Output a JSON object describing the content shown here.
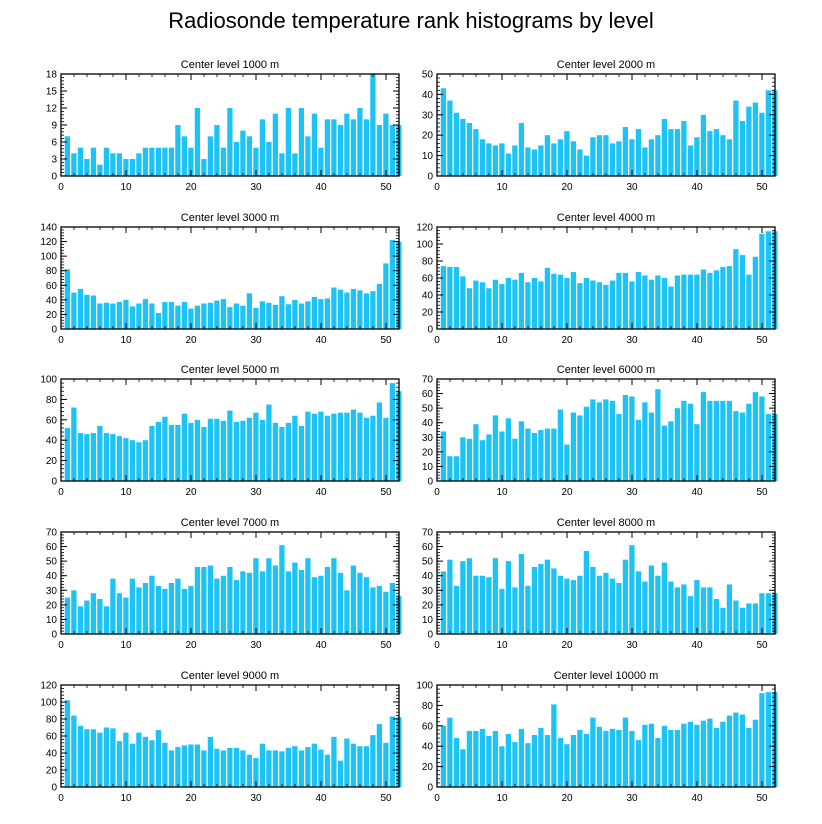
{
  "title": "Radiosonde temperature rank histograms by level",
  "colors": {
    "bar": "#1ec3f5",
    "axis": "#000000",
    "background": "#ffffff"
  },
  "chart_data": [
    {
      "type": "bar",
      "title": "Center level 1000 m",
      "xlim": [
        0,
        52
      ],
      "ylim": [
        0,
        18
      ],
      "xticks": [
        0,
        10,
        20,
        30,
        40,
        50
      ],
      "yticks": [
        0,
        3,
        6,
        9,
        12,
        15,
        18
      ],
      "x": [
        1,
        2,
        3,
        4,
        5,
        6,
        7,
        8,
        9,
        10,
        11,
        12,
        13,
        14,
        15,
        16,
        17,
        18,
        19,
        20,
        21,
        22,
        23,
        24,
        25,
        26,
        27,
        28,
        29,
        30,
        31,
        32,
        33,
        34,
        35,
        36,
        37,
        38,
        39,
        40,
        41,
        42,
        43,
        44,
        45,
        46,
        47,
        48,
        49,
        50,
        51,
        52
      ],
      "values": [
        7,
        4,
        5,
        3,
        5,
        2,
        5,
        4,
        4,
        3,
        3,
        4,
        5,
        5,
        5,
        5,
        5,
        9,
        7,
        5,
        12,
        3,
        7,
        9,
        5,
        12,
        6,
        8,
        7,
        5,
        10,
        6,
        11,
        4,
        12,
        4,
        12,
        7,
        11,
        5,
        10,
        10,
        9,
        11,
        10,
        12,
        10,
        18,
        9,
        11,
        9,
        9
      ]
    },
    {
      "type": "bar",
      "title": "Center level 2000 m",
      "xlim": [
        0,
        52
      ],
      "ylim": [
        0,
        50
      ],
      "xticks": [
        0,
        10,
        20,
        30,
        40,
        50
      ],
      "yticks": [
        0,
        10,
        20,
        30,
        40,
        50
      ],
      "x": [
        1,
        2,
        3,
        4,
        5,
        6,
        7,
        8,
        9,
        10,
        11,
        12,
        13,
        14,
        15,
        16,
        17,
        18,
        19,
        20,
        21,
        22,
        23,
        24,
        25,
        26,
        27,
        28,
        29,
        30,
        31,
        32,
        33,
        34,
        35,
        36,
        37,
        38,
        39,
        40,
        41,
        42,
        43,
        44,
        45,
        46,
        47,
        48,
        49,
        50,
        51,
        52
      ],
      "values": [
        43,
        37,
        31,
        28,
        26,
        23,
        18,
        16,
        15,
        16,
        11,
        15,
        26,
        14,
        13,
        15,
        20,
        16,
        18,
        22,
        17,
        13,
        10,
        19,
        20,
        20,
        16,
        17,
        24,
        18,
        23,
        14,
        18,
        20,
        28,
        23,
        23,
        27,
        15,
        19,
        30,
        22,
        23,
        20,
        18,
        37,
        27,
        34,
        36,
        31,
        42,
        42
      ]
    },
    {
      "type": "bar",
      "title": "Center level 3000 m",
      "xlim": [
        0,
        52
      ],
      "ylim": [
        0,
        140
      ],
      "xticks": [
        0,
        10,
        20,
        30,
        40,
        50
      ],
      "yticks": [
        0,
        20,
        40,
        60,
        80,
        100,
        120,
        140
      ],
      "x": [
        1,
        2,
        3,
        4,
        5,
        6,
        7,
        8,
        9,
        10,
        11,
        12,
        13,
        14,
        15,
        16,
        17,
        18,
        19,
        20,
        21,
        22,
        23,
        24,
        25,
        26,
        27,
        28,
        29,
        30,
        31,
        32,
        33,
        34,
        35,
        36,
        37,
        38,
        39,
        40,
        41,
        42,
        43,
        44,
        45,
        46,
        47,
        48,
        49,
        50,
        51,
        52
      ],
      "values": [
        82,
        50,
        55,
        47,
        46,
        35,
        36,
        35,
        37,
        40,
        31,
        35,
        41,
        35,
        22,
        37,
        37,
        32,
        37,
        28,
        32,
        35,
        36,
        39,
        41,
        30,
        35,
        32,
        49,
        29,
        38,
        36,
        33,
        45,
        34,
        40,
        35,
        38,
        44,
        41,
        42,
        57,
        54,
        50,
        55,
        53,
        49,
        52,
        62,
        90,
        122,
        120
      ]
    },
    {
      "type": "bar",
      "title": "Center level 4000 m",
      "xlim": [
        0,
        52
      ],
      "ylim": [
        0,
        120
      ],
      "xticks": [
        0,
        10,
        20,
        30,
        40,
        50
      ],
      "yticks": [
        0,
        20,
        40,
        60,
        80,
        100,
        120
      ],
      "x": [
        1,
        2,
        3,
        4,
        5,
        6,
        7,
        8,
        9,
        10,
        11,
        12,
        13,
        14,
        15,
        16,
        17,
        18,
        19,
        20,
        21,
        22,
        23,
        24,
        25,
        26,
        27,
        28,
        29,
        30,
        31,
        32,
        33,
        34,
        35,
        36,
        37,
        38,
        39,
        40,
        41,
        42,
        43,
        44,
        45,
        46,
        47,
        48,
        49,
        50,
        51,
        52
      ],
      "values": [
        74,
        73,
        73,
        62,
        48,
        57,
        55,
        48,
        58,
        53,
        60,
        58,
        66,
        55,
        60,
        56,
        72,
        65,
        64,
        60,
        67,
        54,
        60,
        57,
        55,
        52,
        57,
        66,
        66,
        56,
        67,
        63,
        58,
        63,
        60,
        50,
        63,
        64,
        64,
        64,
        70,
        66,
        69,
        73,
        74,
        94,
        87,
        64,
        85,
        112,
        115,
        115
      ]
    },
    {
      "type": "bar",
      "title": "Center level 5000 m",
      "xlim": [
        0,
        52
      ],
      "ylim": [
        0,
        100
      ],
      "xticks": [
        0,
        10,
        20,
        30,
        40,
        50
      ],
      "yticks": [
        0,
        20,
        40,
        60,
        80,
        100
      ],
      "x": [
        1,
        2,
        3,
        4,
        5,
        6,
        7,
        8,
        9,
        10,
        11,
        12,
        13,
        14,
        15,
        16,
        17,
        18,
        19,
        20,
        21,
        22,
        23,
        24,
        25,
        26,
        27,
        28,
        29,
        30,
        31,
        32,
        33,
        34,
        35,
        36,
        37,
        38,
        39,
        40,
        41,
        42,
        43,
        44,
        45,
        46,
        47,
        48,
        49,
        50,
        51,
        52
      ],
      "values": [
        52,
        72,
        47,
        46,
        47,
        54,
        47,
        46,
        44,
        42,
        40,
        38,
        40,
        54,
        58,
        63,
        55,
        55,
        66,
        57,
        60,
        53,
        61,
        61,
        59,
        69,
        58,
        59,
        62,
        67,
        60,
        75,
        57,
        53,
        57,
        64,
        54,
        68,
        66,
        68,
        64,
        66,
        67,
        67,
        70,
        67,
        62,
        64,
        77,
        62,
        96,
        88
      ]
    },
    {
      "type": "bar",
      "title": "Center level 6000 m",
      "xlim": [
        0,
        52
      ],
      "ylim": [
        0,
        70
      ],
      "xticks": [
        0,
        10,
        20,
        30,
        40,
        50
      ],
      "yticks": [
        0,
        10,
        20,
        30,
        40,
        50,
        60,
        70
      ],
      "x": [
        1,
        2,
        3,
        4,
        5,
        6,
        7,
        8,
        9,
        10,
        11,
        12,
        13,
        14,
        15,
        16,
        17,
        18,
        19,
        20,
        21,
        22,
        23,
        24,
        25,
        26,
        27,
        28,
        29,
        30,
        31,
        32,
        33,
        34,
        35,
        36,
        37,
        38,
        39,
        40,
        41,
        42,
        43,
        44,
        45,
        46,
        47,
        48,
        49,
        50,
        51,
        52
      ],
      "values": [
        34,
        17,
        17,
        30,
        29,
        39,
        28,
        32,
        45,
        34,
        43,
        29,
        41,
        36,
        33,
        35,
        36,
        36,
        49,
        25,
        47,
        45,
        51,
        56,
        54,
        56,
        55,
        46,
        59,
        58,
        42,
        54,
        47,
        63,
        38,
        41,
        50,
        55,
        53,
        39,
        61,
        55,
        55,
        55,
        55,
        48,
        47,
        53,
        61,
        58,
        46,
        46
      ]
    },
    {
      "type": "bar",
      "title": "Center level 7000 m",
      "xlim": [
        0,
        52
      ],
      "ylim": [
        0,
        70
      ],
      "xticks": [
        0,
        10,
        20,
        30,
        40,
        50
      ],
      "yticks": [
        0,
        10,
        20,
        30,
        40,
        50,
        60,
        70
      ],
      "x": [
        1,
        2,
        3,
        4,
        5,
        6,
        7,
        8,
        9,
        10,
        11,
        12,
        13,
        14,
        15,
        16,
        17,
        18,
        19,
        20,
        21,
        22,
        23,
        24,
        25,
        26,
        27,
        28,
        29,
        30,
        31,
        32,
        33,
        34,
        35,
        36,
        37,
        38,
        39,
        40,
        41,
        42,
        43,
        44,
        45,
        46,
        47,
        48,
        49,
        50,
        51,
        52
      ],
      "values": [
        25,
        30,
        19,
        23,
        28,
        24,
        19,
        38,
        28,
        25,
        38,
        32,
        35,
        40,
        33,
        31,
        35,
        38,
        31,
        33,
        46,
        46,
        47,
        38,
        40,
        46,
        37,
        43,
        42,
        52,
        43,
        52,
        47,
        61,
        43,
        49,
        44,
        52,
        39,
        40,
        46,
        52,
        42,
        30,
        47,
        42,
        39,
        32,
        33,
        29,
        35,
        26
      ]
    },
    {
      "type": "bar",
      "title": "Center level 8000 m",
      "xlim": [
        0,
        52
      ],
      "ylim": [
        0,
        70
      ],
      "xticks": [
        0,
        10,
        20,
        30,
        40,
        50
      ],
      "yticks": [
        0,
        10,
        20,
        30,
        40,
        50,
        60,
        70
      ],
      "x": [
        1,
        2,
        3,
        4,
        5,
        6,
        7,
        8,
        9,
        10,
        11,
        12,
        13,
        14,
        15,
        16,
        17,
        18,
        19,
        20,
        21,
        22,
        23,
        24,
        25,
        26,
        27,
        28,
        29,
        30,
        31,
        32,
        33,
        34,
        35,
        36,
        37,
        38,
        39,
        40,
        41,
        42,
        43,
        44,
        45,
        46,
        47,
        48,
        49,
        50,
        51,
        52
      ],
      "values": [
        43,
        51,
        33,
        50,
        52,
        40,
        40,
        39,
        52,
        31,
        50,
        32,
        55,
        33,
        46,
        48,
        51,
        45,
        40,
        38,
        37,
        40,
        57,
        46,
        40,
        42,
        38,
        35,
        51,
        61,
        43,
        36,
        47,
        40,
        49,
        36,
        32,
        34,
        26,
        37,
        32,
        32,
        24,
        18,
        34,
        23,
        18,
        21,
        21,
        28,
        28,
        28
      ]
    },
    {
      "type": "bar",
      "title": "Center level 9000 m",
      "xlim": [
        0,
        52
      ],
      "ylim": [
        0,
        120
      ],
      "xticks": [
        0,
        10,
        20,
        30,
        40,
        50
      ],
      "yticks": [
        0,
        20,
        40,
        60,
        80,
        100,
        120
      ],
      "x": [
        1,
        2,
        3,
        4,
        5,
        6,
        7,
        8,
        9,
        10,
        11,
        12,
        13,
        14,
        15,
        16,
        17,
        18,
        19,
        20,
        21,
        22,
        23,
        24,
        25,
        26,
        27,
        28,
        29,
        30,
        31,
        32,
        33,
        34,
        35,
        36,
        37,
        38,
        39,
        40,
        41,
        42,
        43,
        44,
        45,
        46,
        47,
        48,
        49,
        50,
        51,
        52
      ],
      "values": [
        102,
        84,
        72,
        68,
        68,
        64,
        70,
        69,
        54,
        64,
        51,
        64,
        59,
        55,
        67,
        52,
        43,
        47,
        49,
        50,
        50,
        43,
        59,
        45,
        43,
        46,
        46,
        43,
        38,
        34,
        51,
        43,
        43,
        42,
        46,
        48,
        43,
        47,
        51,
        44,
        38,
        59,
        31,
        57,
        51,
        48,
        48,
        61,
        74,
        52,
        83,
        82
      ]
    },
    {
      "type": "bar",
      "title": "Center level 10000 m",
      "xlim": [
        0,
        52
      ],
      "ylim": [
        0,
        100
      ],
      "xticks": [
        0,
        10,
        20,
        30,
        40,
        50
      ],
      "yticks": [
        0,
        20,
        40,
        60,
        80,
        100
      ],
      "x": [
        1,
        2,
        3,
        4,
        5,
        6,
        7,
        8,
        9,
        10,
        11,
        12,
        13,
        14,
        15,
        16,
        17,
        18,
        19,
        20,
        21,
        22,
        23,
        24,
        25,
        26,
        27,
        28,
        29,
        30,
        31,
        32,
        33,
        34,
        35,
        36,
        37,
        38,
        39,
        40,
        41,
        42,
        43,
        44,
        45,
        46,
        47,
        48,
        49,
        50,
        51,
        52
      ],
      "values": [
        60,
        68,
        48,
        37,
        55,
        55,
        57,
        50,
        55,
        40,
        52,
        44,
        57,
        43,
        51,
        58,
        51,
        81,
        48,
        42,
        51,
        56,
        52,
        68,
        59,
        55,
        57,
        56,
        68,
        55,
        46,
        61,
        62,
        48,
        60,
        56,
        56,
        62,
        64,
        61,
        65,
        67,
        58,
        64,
        70,
        73,
        71,
        58,
        66,
        92,
        93,
        93
      ]
    }
  ]
}
